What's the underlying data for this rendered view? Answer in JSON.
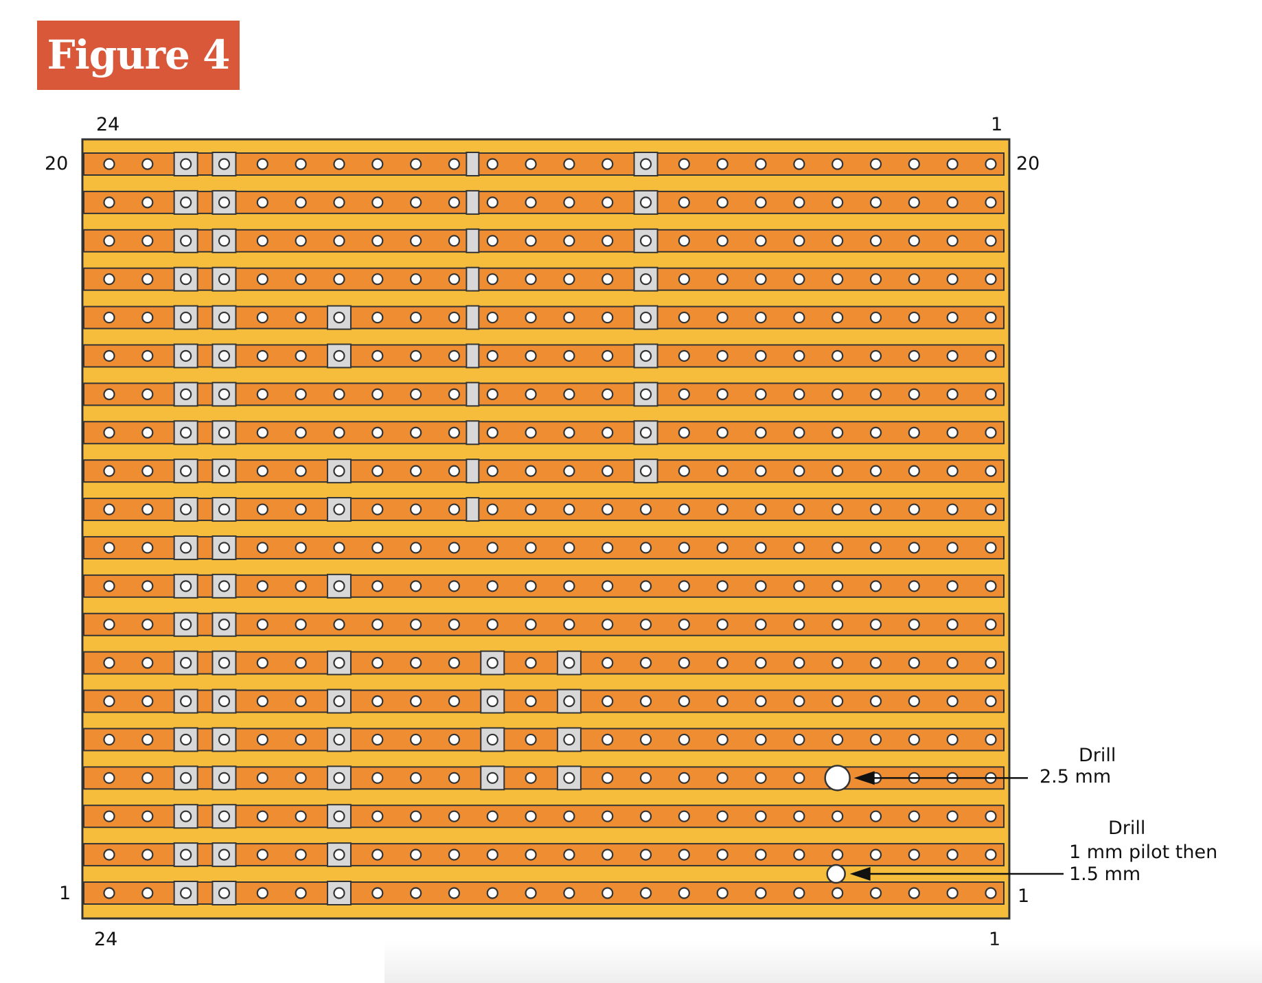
{
  "figure_label": "Figure 4",
  "board": {
    "columns": 24,
    "rows": 20,
    "column_labels": {
      "left": "24",
      "right": "1"
    },
    "row_labels": {
      "top": "20",
      "bottom": "1"
    },
    "colors": {
      "board": "#f6bd3c",
      "strip": "#ef8d33",
      "outline": "#333333",
      "hole": "#ffffff",
      "pad": "#d8d8d8",
      "cut": "#d8d8d8"
    }
  },
  "pads": [
    {
      "column": 22,
      "rows": [
        1,
        2,
        3,
        4,
        5,
        6,
        7,
        8,
        9,
        10,
        11,
        12,
        13,
        14,
        15,
        16,
        17,
        18,
        19,
        20
      ]
    },
    {
      "column": 21,
      "rows": [
        1,
        2,
        3,
        4,
        5,
        6,
        7,
        8,
        9,
        10,
        11,
        12,
        13,
        14,
        15,
        16,
        17,
        18,
        19,
        20
      ]
    },
    {
      "column": 18,
      "rows": [
        1,
        2,
        3,
        4,
        5,
        6,
        7,
        9,
        11,
        12,
        15,
        16
      ]
    },
    {
      "column": 14,
      "rows": [
        4,
        5,
        6,
        7
      ]
    },
    {
      "column": 10,
      "rows": [
        12,
        13,
        14,
        15,
        16,
        17,
        18,
        19,
        20
      ]
    },
    {
      "column": 12,
      "rows": [
        4,
        5,
        6,
        7
      ]
    }
  ],
  "strip_cuts": {
    "between_columns": [
      15,
      14
    ],
    "rows": [
      11,
      12,
      13,
      14,
      15,
      16,
      17,
      18,
      19,
      20
    ]
  },
  "drill_holes": [
    {
      "id": "drill-25",
      "column": 5,
      "row": 4,
      "heading": "Drill",
      "size_lines": [
        "2.5 mm"
      ]
    },
    {
      "id": "drill-15",
      "between_rows": [
        1,
        2
      ],
      "column": 5,
      "heading": "Drill",
      "size_lines": [
        "1 mm pilot then",
        "1.5 mm"
      ]
    }
  ]
}
